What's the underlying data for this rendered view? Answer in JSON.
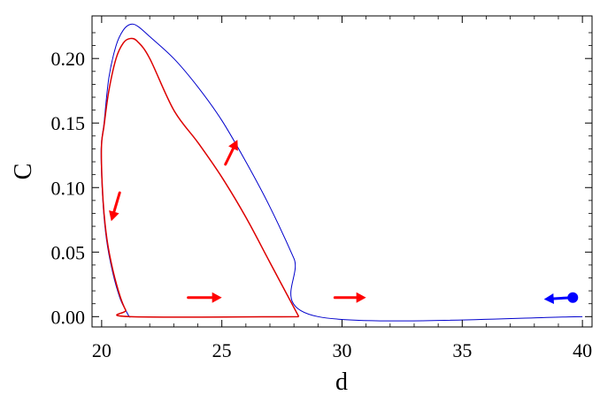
{
  "chart_data": {
    "type": "line",
    "title": "",
    "xlabel": "d",
    "ylabel": "C",
    "xlim": [
      19.6,
      40.4
    ],
    "ylim": [
      -0.008,
      0.233
    ],
    "x_ticks": [
      20,
      25,
      30,
      35,
      40
    ],
    "y_ticks": [
      0.0,
      0.05,
      0.1,
      0.15,
      0.2
    ],
    "x_tick_labels": [
      "20",
      "25",
      "30",
      "35",
      "40"
    ],
    "y_tick_labels": [
      "0.00",
      "0.05",
      "0.10",
      "0.15",
      "0.20"
    ],
    "grid": false,
    "legend": "none",
    "series": [
      {
        "color": "#0000cc",
        "x": [
          40.0,
          29.0,
          28.0,
          27.0,
          26.0,
          25.0,
          24.0,
          23.0,
          22.0,
          21.5,
          21.2,
          20.9,
          20.6,
          20.3,
          20.1,
          19.98,
          20.05,
          20.2,
          20.45,
          20.75,
          21.0,
          21.15,
          21.2
        ],
        "y": [
          0.0,
          0.0,
          0.045,
          0.085,
          0.12,
          0.152,
          0.178,
          0.2,
          0.217,
          0.225,
          0.2265,
          0.222,
          0.21,
          0.185,
          0.15,
          0.13,
          0.09,
          0.06,
          0.035,
          0.015,
          0.005,
          0.0,
          0.0
        ]
      },
      {
        "color": "#dd0000",
        "x": [
          28.2,
          27.0,
          26.0,
          25.0,
          24.0,
          23.0,
          22.0,
          21.5,
          21.2,
          20.9,
          20.6,
          20.3,
          20.1,
          19.99,
          20.06,
          20.22,
          20.48,
          20.78,
          21.0,
          21.2,
          28.2
        ],
        "y": [
          0.0,
          0.042,
          0.077,
          0.108,
          0.135,
          0.16,
          0.2,
          0.213,
          0.2155,
          0.212,
          0.2,
          0.175,
          0.148,
          0.13,
          0.09,
          0.06,
          0.035,
          0.015,
          0.005,
          0.0,
          0.0
        ]
      }
    ],
    "arrows": [
      {
        "color": "#ff0000",
        "from": [
          20.75,
          0.096
        ],
        "to": [
          20.4,
          0.074
        ],
        "marker": "none"
      },
      {
        "color": "#ff0000",
        "from": [
          25.15,
          0.118
        ],
        "to": [
          25.65,
          0.137
        ],
        "marker": "none"
      },
      {
        "color": "#ff0000",
        "from": [
          23.6,
          0.0148
        ],
        "to": [
          25.0,
          0.0148
        ],
        "marker": "none"
      },
      {
        "color": "#ff0000",
        "from": [
          29.7,
          0.0148
        ],
        "to": [
          31.0,
          0.0148
        ],
        "marker": "none"
      },
      {
        "color": "#0000ff",
        "from": [
          39.6,
          0.0148
        ],
        "to": [
          38.4,
          0.0135
        ],
        "marker": "dot"
      }
    ]
  }
}
